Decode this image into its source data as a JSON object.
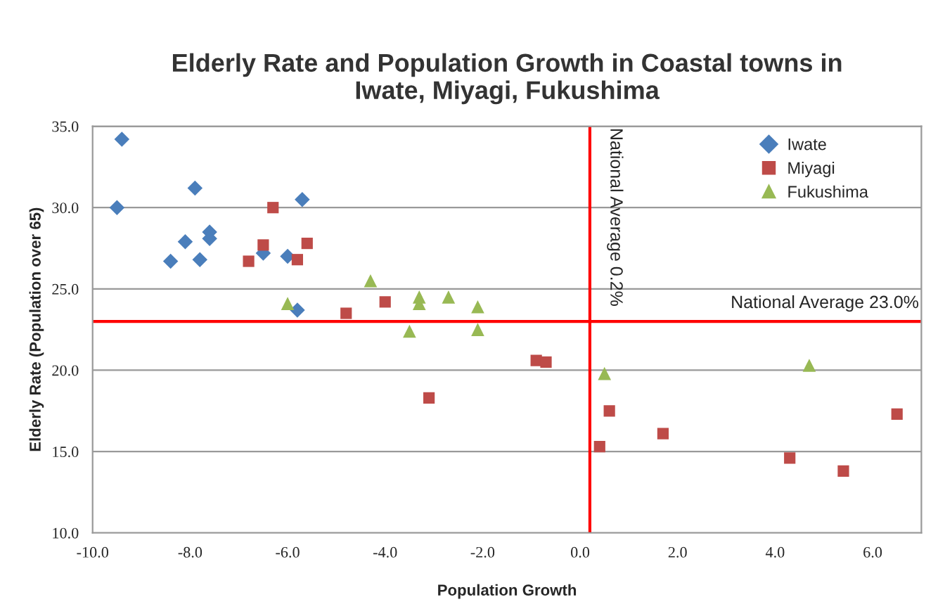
{
  "chart_data": {
    "type": "scatter",
    "title": "Elderly Rate and Population Growth in Coastal towns in\nIwate, Miyagi, Fukushima",
    "xlabel": "Population Growth",
    "ylabel": "Elderly Rate (Population over 65)",
    "series": [
      {
        "name": "Iwate",
        "color": "#4a7ebb",
        "marker": "diamond",
        "x": [
          -9.4,
          -9.5,
          -7.9,
          -8.1,
          -7.6,
          -7.6,
          -8.4,
          -7.8,
          -6.5,
          -6.0,
          -5.7,
          -5.8
        ],
        "values": [
          34.2,
          30.0,
          31.2,
          27.9,
          28.5,
          28.1,
          26.7,
          26.8,
          27.2,
          27.0,
          30.5,
          23.7
        ]
      },
      {
        "name": "Miyagi",
        "color": "#be4b48",
        "marker": "square",
        "x": [
          -6.3,
          -6.8,
          -6.5,
          -5.8,
          -5.6,
          -4.8,
          -4.0,
          -3.1,
          -0.9,
          -0.7,
          0.4,
          0.6,
          1.7,
          4.3,
          5.4,
          6.5
        ],
        "values": [
          30.0,
          26.7,
          27.7,
          26.8,
          27.8,
          23.5,
          24.2,
          18.3,
          20.6,
          20.5,
          15.3,
          17.5,
          16.1,
          14.6,
          13.8,
          17.3
        ]
      },
      {
        "name": "Fukushima",
        "color": "#98b954",
        "marker": "triangle",
        "x": [
          -6.0,
          -4.3,
          -3.3,
          -3.3,
          -2.7,
          -3.5,
          -2.1,
          -2.1,
          0.5,
          4.7
        ],
        "values": [
          24.1,
          25.5,
          24.5,
          24.1,
          24.5,
          22.4,
          23.9,
          22.5,
          19.8,
          20.3
        ]
      }
    ],
    "xlim": [
      -10,
      7
    ],
    "ylim": [
      10,
      35
    ],
    "xticks": [
      {
        "value": -10,
        "label": "-10.0"
      },
      {
        "value": -8,
        "label": "-8.0"
      },
      {
        "value": -6,
        "label": "-6.0"
      },
      {
        "value": -4,
        "label": "-4.0"
      },
      {
        "value": -2,
        "label": "-2.0"
      },
      {
        "value": 0,
        "label": "0.0"
      },
      {
        "value": 2,
        "label": "2.0"
      },
      {
        "value": 4,
        "label": "4.0"
      },
      {
        "value": 6,
        "label": "6.0"
      }
    ],
    "yticks": [
      {
        "value": 10,
        "label": "10.0"
      },
      {
        "value": 15,
        "label": "15.0"
      },
      {
        "value": 20,
        "label": "20.0"
      },
      {
        "value": 25,
        "label": "25.0"
      },
      {
        "value": 30,
        "label": "30.0"
      },
      {
        "value": 35,
        "label": "35.0"
      }
    ],
    "ref_lines": [
      {
        "axis": "x",
        "value": 0.2,
        "label": "National Average 0.2%",
        "color": "#ff0000"
      },
      {
        "axis": "y",
        "value": 23.0,
        "label": "National Average 23.0%",
        "color": "#ff0000"
      }
    ],
    "grid": "y",
    "legend": "top right"
  }
}
